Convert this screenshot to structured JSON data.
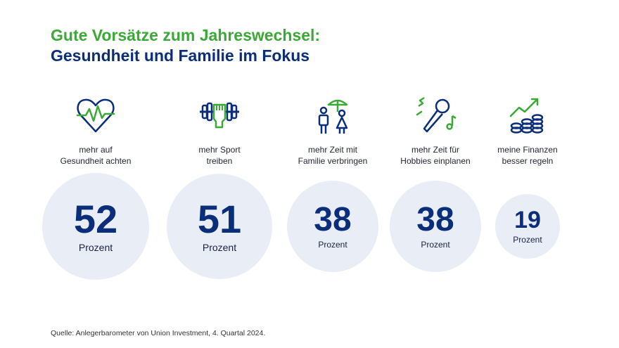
{
  "title": {
    "line1": "Gute Vorsätze zum Jahreswechsel:",
    "line2": "Gesundheit und Familie im Fokus"
  },
  "colors": {
    "title_green": "#3aa935",
    "navy": "#0b2e7a",
    "bubble": "#e8edf6"
  },
  "chart_data": {
    "type": "bubble",
    "unit": "Prozent",
    "items": [
      {
        "label_lines": [
          "mehr auf",
          "Gesundheit achten"
        ],
        "value": 52,
        "icon": "heart-pulse-icon"
      },
      {
        "label_lines": [
          "mehr Sport",
          "treiben"
        ],
        "value": 51,
        "icon": "dumbbell-fist-icon"
      },
      {
        "label_lines": [
          "mehr Zeit mit",
          "Familie verbringen"
        ],
        "value": 38,
        "icon": "family-umbrella-icon"
      },
      {
        "label_lines": [
          "mehr Zeit für",
          "Hobbies einplanen"
        ],
        "value": 38,
        "icon": "microphone-music-icon"
      },
      {
        "label_lines": [
          "meine Finanzen",
          "besser regeln"
        ],
        "value": 19,
        "icon": "coins-growth-icon"
      }
    ]
  },
  "source": "Quelle: Anlegerbarometer von Union Investment, 4. Quartal 2024."
}
